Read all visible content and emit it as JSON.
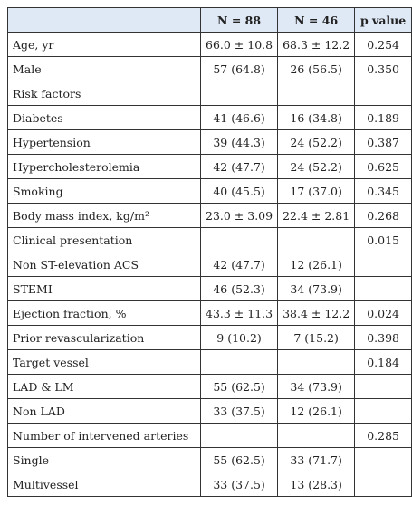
{
  "table": {
    "header": [
      "N = 88",
      "N = 46",
      "p value"
    ],
    "rows": [
      [
        "Age, yr",
        "66.0 ± 10.8",
        "68.3 ± 12.2",
        "0.254"
      ],
      [
        "Male",
        "57 (64.8)",
        "26 (56.5)",
        "0.350"
      ],
      [
        "Risk factors",
        null,
        null,
        null
      ],
      [
        "Diabetes",
        "41 (46.6)",
        "16 (34.8)",
        "0.189"
      ],
      [
        "Hypertension",
        "39 (44.3)",
        "24 (52.2)",
        "0.387"
      ],
      [
        "Hypercholesterolemia",
        "42 (47.7)",
        "24 (52.2)",
        "0.625"
      ],
      [
        "Smoking",
        "40 (45.5)",
        "17 (37.0)",
        "0.345"
      ],
      [
        "Body mass index, kg/m²",
        "23.0 ± 3.09",
        "22.4 ± 2.81",
        "0.268"
      ],
      [
        "Clinical presentation",
        null,
        null,
        "0.015"
      ],
      [
        "Non ST-elevation ACS",
        "42 (47.7)",
        "12 (26.1)",
        null
      ],
      [
        "STEMI",
        "46 (52.3)",
        "34 (73.9)",
        null
      ],
      [
        "Ejection fraction, %",
        "43.3 ± 11.3",
        "38.4 ± 12.2",
        "0.024"
      ],
      [
        "Prior revascularization",
        "9 (10.2)",
        "7 (15.2)",
        "0.398"
      ],
      [
        "Target vessel",
        null,
        null,
        "0.184"
      ],
      [
        "LAD & LM",
        "55 (62.5)",
        "34 (73.9)",
        null
      ],
      [
        "Non LAD",
        "33 (37.5)",
        "12 (26.1)",
        null
      ],
      [
        "Number of intervened arteries",
        null,
        null,
        "0.285"
      ],
      [
        "Single",
        "55 (62.5)",
        "33 (71.7)",
        null
      ],
      [
        "Multivessel",
        "33 (37.5)",
        "13 (28.3)",
        null
      ]
    ]
  }
}
